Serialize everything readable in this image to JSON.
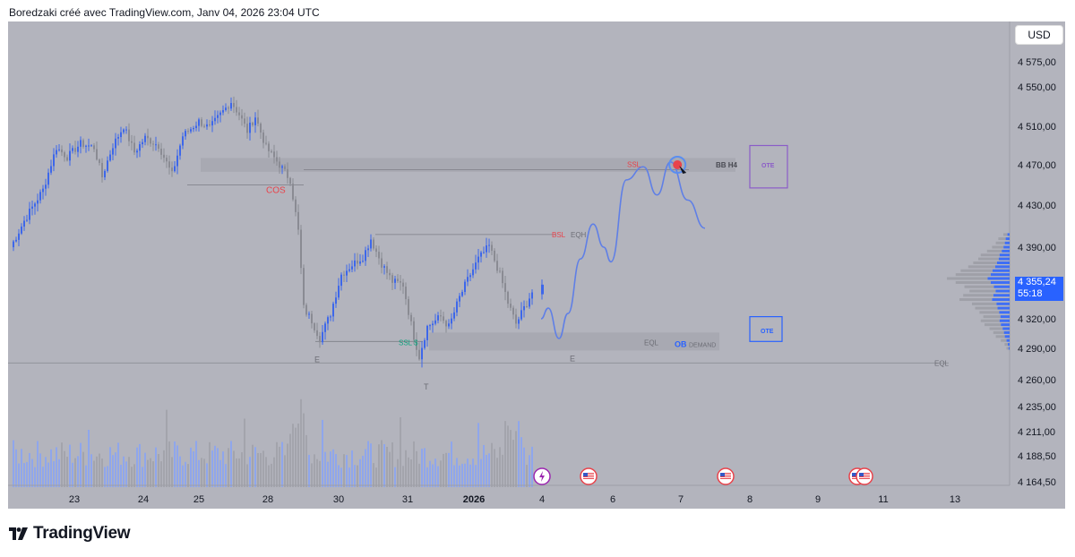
{
  "header": {
    "text": "Boredzaki créé avec TradingView.com, Janv 04, 2026 23:04 UTC"
  },
  "currency_button": "USD",
  "current_price": {
    "price": "4 355,24",
    "countdown": "55:18",
    "value": 4355.24
  },
  "logo": {
    "text": "TradingView",
    "icon": "tradingview-logo-icon"
  },
  "colors": {
    "background": "#b3b4bd",
    "up_candle": "#3d67ea",
    "down_candle": "#8a8b93",
    "accent_blue": "#2962ff",
    "label_red": "#e8434b",
    "label_green": "#11a37f",
    "zone_purple": "#8b5cc8",
    "projection": "#5f7fe6"
  },
  "chart_data": {
    "type": "candlestick",
    "title": "",
    "xlabel": "",
    "ylabel": "",
    "ylim": [
      4160,
      4600
    ],
    "y_ticks": [
      "4 575,00",
      "4 550,00",
      "4 510,00",
      "4 470,00",
      "4 430,00",
      "4 390,00",
      "4 355,24",
      "4 320,00",
      "4 290,00",
      "4 260,00",
      "4 235,00",
      "4 211,00",
      "4 188,50",
      "4 164,50"
    ],
    "x_ticks": [
      "23",
      "24",
      "25",
      "28",
      "30",
      "31",
      "2026",
      "4",
      "6",
      "7",
      "8",
      "9",
      "11",
      "13"
    ],
    "annotations": [
      {
        "text": "COS",
        "color": "red"
      },
      {
        "text": "SSL",
        "color": "red"
      },
      {
        "text": "BB H4",
        "color": "dark"
      },
      {
        "text": "OTE",
        "color": "purple"
      },
      {
        "text": "BSL",
        "color": "red"
      },
      {
        "text": "EQH",
        "color": "gray"
      },
      {
        "text": "SSL $",
        "color": "green"
      },
      {
        "text": "EQL",
        "color": "gray"
      },
      {
        "text": "OB",
        "color": "blue"
      },
      {
        "text": "DEMAND",
        "color": "gray"
      },
      {
        "text": "OTE",
        "color": "blue"
      },
      {
        "text": "E",
        "color": "gray"
      },
      {
        "text": "E",
        "color": "gray"
      },
      {
        "text": "T",
        "color": "gray"
      },
      {
        "text": "EQL",
        "color": "gray"
      }
    ],
    "levels": {
      "cos": 4450,
      "ssl_top": 4465,
      "bb_h4_zone": [
        4463,
        4477
      ],
      "bsl_eqh": 4402,
      "ssl_low": 4297,
      "demand_zone": [
        4288,
        4306
      ],
      "eql_bottom": 4276,
      "ote_upper": [
        4447,
        4490
      ],
      "ote_lower": [
        4297,
        4322
      ]
    },
    "price_path": [
      {
        "t": 0,
        "p": 4390
      },
      {
        "t": 5,
        "p": 4415
      },
      {
        "t": 12,
        "p": 4445
      },
      {
        "t": 17,
        "p": 4488
      },
      {
        "t": 21,
        "p": 4478
      },
      {
        "t": 26,
        "p": 4492
      },
      {
        "t": 31,
        "p": 4488
      },
      {
        "t": 34,
        "p": 4458
      },
      {
        "t": 38,
        "p": 4490
      },
      {
        "t": 42,
        "p": 4510
      },
      {
        "t": 46,
        "p": 4483
      },
      {
        "t": 50,
        "p": 4498
      },
      {
        "t": 55,
        "p": 4490
      },
      {
        "t": 60,
        "p": 4460
      },
      {
        "t": 64,
        "p": 4500
      },
      {
        "t": 70,
        "p": 4515
      },
      {
        "t": 74,
        "p": 4508
      },
      {
        "t": 78,
        "p": 4522
      },
      {
        "t": 82,
        "p": 4535
      },
      {
        "t": 85,
        "p": 4522
      },
      {
        "t": 88,
        "p": 4505
      },
      {
        "t": 91,
        "p": 4520
      },
      {
        "t": 95,
        "p": 4488
      },
      {
        "t": 100,
        "p": 4470
      },
      {
        "t": 104,
        "p": 4455
      },
      {
        "t": 107,
        "p": 4405
      },
      {
        "t": 109,
        "p": 4330
      },
      {
        "t": 112,
        "p": 4318
      },
      {
        "t": 115,
        "p": 4300
      },
      {
        "t": 119,
        "p": 4325
      },
      {
        "t": 123,
        "p": 4362
      },
      {
        "t": 127,
        "p": 4372
      },
      {
        "t": 131,
        "p": 4380
      },
      {
        "t": 134,
        "p": 4398
      },
      {
        "t": 138,
        "p": 4373
      },
      {
        "t": 142,
        "p": 4355
      },
      {
        "t": 146,
        "p": 4352
      },
      {
        "t": 150,
        "p": 4302
      },
      {
        "t": 152,
        "p": 4282
      },
      {
        "t": 155,
        "p": 4312
      },
      {
        "t": 160,
        "p": 4322
      },
      {
        "t": 163,
        "p": 4312
      },
      {
        "t": 167,
        "p": 4340
      },
      {
        "t": 171,
        "p": 4362
      },
      {
        "t": 174,
        "p": 4378
      },
      {
        "t": 178,
        "p": 4391
      },
      {
        "t": 182,
        "p": 4362
      },
      {
        "t": 185,
        "p": 4335
      },
      {
        "t": 188,
        "p": 4315
      },
      {
        "t": 191,
        "p": 4330
      },
      {
        "t": 194,
        "p": 4345
      }
    ],
    "projection_path": [
      {
        "d": 4.0,
        "p": 4320
      },
      {
        "d": 4.2,
        "p": 4330
      },
      {
        "d": 4.5,
        "p": 4300
      },
      {
        "d": 4.75,
        "p": 4325
      },
      {
        "d": 5.1,
        "p": 4378
      },
      {
        "d": 5.45,
        "p": 4412
      },
      {
        "d": 5.75,
        "p": 4390
      },
      {
        "d": 5.95,
        "p": 4375
      },
      {
        "d": 6.2,
        "p": 4455
      },
      {
        "d": 6.45,
        "p": 4468
      },
      {
        "d": 6.65,
        "p": 4440
      },
      {
        "d": 6.85,
        "p": 4473
      },
      {
        "d": 7.1,
        "p": 4435
      },
      {
        "d": 7.35,
        "p": 4408
      }
    ],
    "target_marker": {
      "d": 6.95,
      "p": 4470
    },
    "event_markers": [
      {
        "day": "4",
        "icon": "lightning-icon"
      },
      {
        "day": "4-6",
        "icon": "us-flag-icon"
      },
      {
        "day": "7-8",
        "icon": "us-flag-icon"
      },
      {
        "day": "9-11",
        "icon": "us-flag-icon"
      },
      {
        "day": "9-11",
        "icon": "us-flag-icon"
      }
    ],
    "volume_profile": [
      {
        "p": 4402,
        "v": 0.1
      },
      {
        "p": 4398,
        "v": 0.18
      },
      {
        "p": 4394,
        "v": 0.22
      },
      {
        "p": 4390,
        "v": 0.28
      },
      {
        "p": 4386,
        "v": 0.36
      },
      {
        "p": 4382,
        "v": 0.46
      },
      {
        "p": 4378,
        "v": 0.5
      },
      {
        "p": 4374,
        "v": 0.58
      },
      {
        "p": 4370,
        "v": 0.66
      },
      {
        "p": 4366,
        "v": 0.78
      },
      {
        "p": 4362,
        "v": 0.86
      },
      {
        "p": 4358,
        "v": 1.0
      },
      {
        "p": 4354,
        "v": 0.86
      },
      {
        "p": 4350,
        "v": 0.72
      },
      {
        "p": 4346,
        "v": 0.64
      },
      {
        "p": 4342,
        "v": 0.74
      },
      {
        "p": 4338,
        "v": 0.8
      },
      {
        "p": 4334,
        "v": 0.6
      },
      {
        "p": 4330,
        "v": 0.55
      },
      {
        "p": 4326,
        "v": 0.48
      },
      {
        "p": 4322,
        "v": 0.42
      },
      {
        "p": 4318,
        "v": 0.46
      },
      {
        "p": 4314,
        "v": 0.4
      },
      {
        "p": 4310,
        "v": 0.32
      },
      {
        "p": 4306,
        "v": 0.26
      },
      {
        "p": 4302,
        "v": 0.22
      },
      {
        "p": 4298,
        "v": 0.14
      },
      {
        "p": 4294,
        "v": 0.08
      },
      {
        "p": 4290,
        "v": 0.05
      }
    ]
  }
}
